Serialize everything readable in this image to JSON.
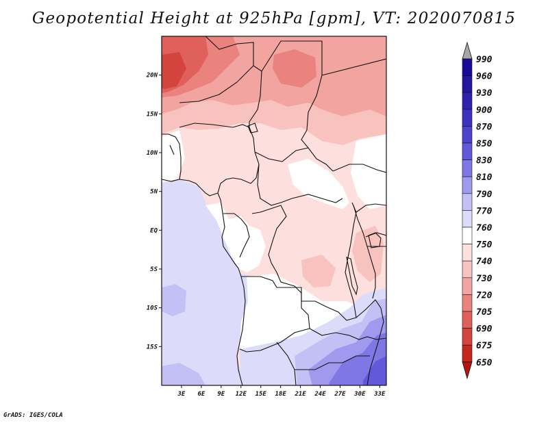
{
  "title": "Geopotential Height at 925hPa [gpm], VT: 2020070815",
  "credit": "GrADS: IGES/COLA",
  "map": {
    "lon_range": [
      0,
      34
    ],
    "lat_range": [
      -20,
      25
    ],
    "x_ticks": [
      {
        "lon": 3,
        "label": "3E"
      },
      {
        "lon": 6,
        "label": "6E"
      },
      {
        "lon": 9,
        "label": "9E"
      },
      {
        "lon": 12,
        "label": "12E"
      },
      {
        "lon": 15,
        "label": "15E"
      },
      {
        "lon": 18,
        "label": "18E"
      },
      {
        "lon": 21,
        "label": "21E"
      },
      {
        "lon": 24,
        "label": "24E"
      },
      {
        "lon": 27,
        "label": "27E"
      },
      {
        "lon": 30,
        "label": "30E"
      },
      {
        "lon": 33,
        "label": "33E"
      }
    ],
    "y_ticks": [
      {
        "lat": 20,
        "label": "20N"
      },
      {
        "lat": 15,
        "label": "15N"
      },
      {
        "lat": 10,
        "label": "10N"
      },
      {
        "lat": 5,
        "label": "5N"
      },
      {
        "lat": 0,
        "label": "EQ"
      },
      {
        "lat": -5,
        "label": "5S"
      },
      {
        "lat": -10,
        "label": "10S"
      },
      {
        "lat": -15,
        "label": "15S"
      }
    ]
  },
  "colorbar": {
    "levels": [
      "990",
      "960",
      "930",
      "900",
      "870",
      "850",
      "830",
      "810",
      "790",
      "770",
      "760",
      "750",
      "740",
      "730",
      "720",
      "705",
      "690",
      "675",
      "650"
    ],
    "colors": [
      "#a6a6a6",
      "#1a0a9a",
      "#25169f",
      "#2e22ad",
      "#3d32bf",
      "#4d43cf",
      "#6158dc",
      "#7e77e4",
      "#a09aee",
      "#c2c0f5",
      "#dcdcfa",
      "#ffffff",
      "#fde0de",
      "#f8c2bf",
      "#f2a4a1",
      "#ea827e",
      "#e0605c",
      "#d3443e",
      "#c5271f",
      "#b31410",
      "#b31410"
    ]
  },
  "regions": [
    {
      "name": "northwest-low",
      "color": "#e0605c"
    },
    {
      "name": "sahel-band",
      "color": "#f2a4a1"
    },
    {
      "name": "north-central",
      "color": "#f8c2bf"
    },
    {
      "name": "central-africa",
      "color": "#fde0de"
    },
    {
      "name": "east-africa",
      "color": "#f2a4a1"
    },
    {
      "name": "ocean",
      "color": "#dcdcfa"
    },
    {
      "name": "southeast-high",
      "color": "#7e77e4"
    }
  ]
}
